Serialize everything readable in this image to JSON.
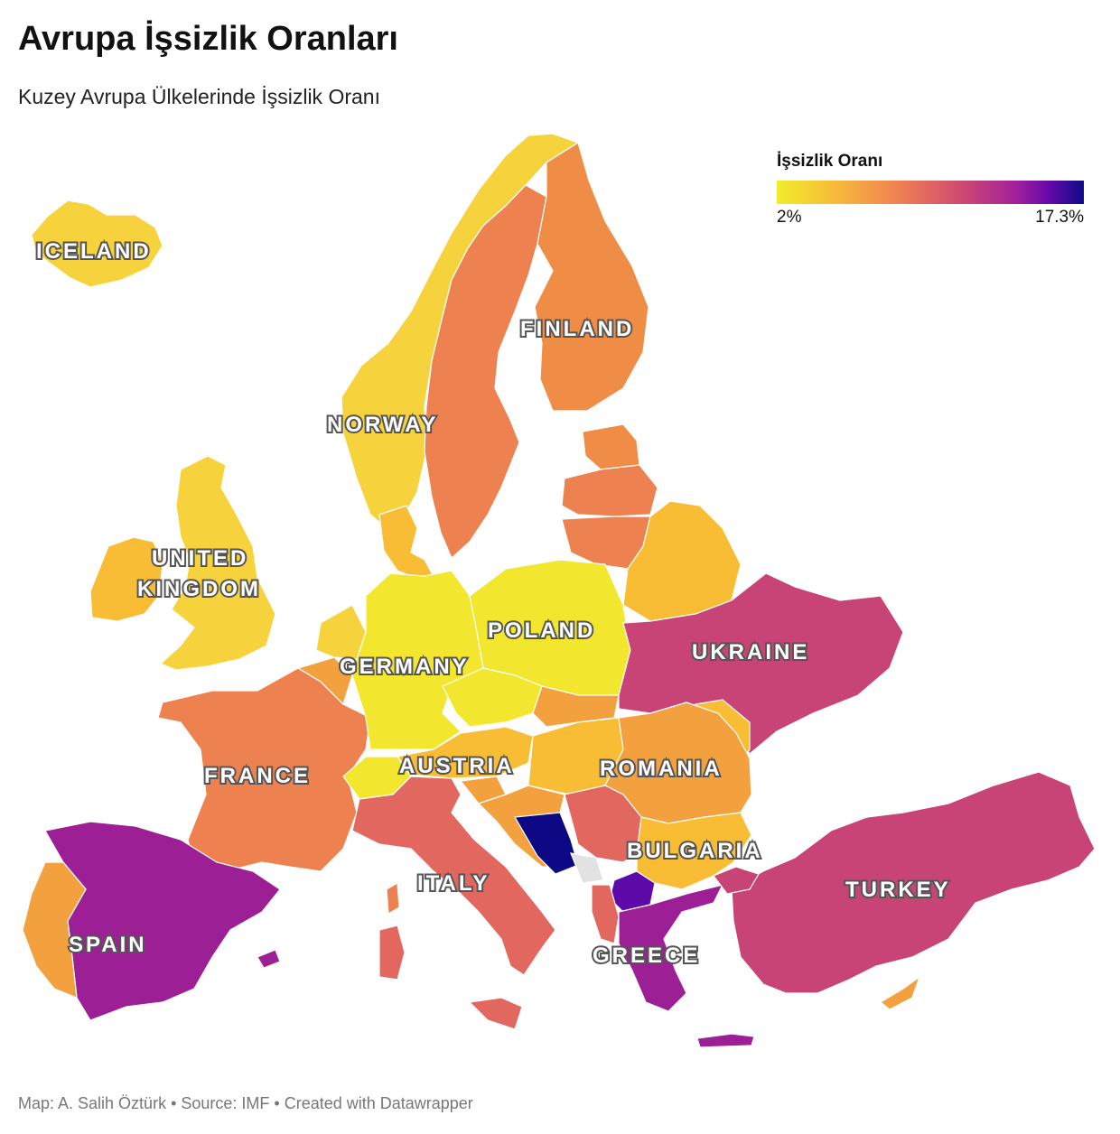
{
  "title": "Avrupa İşsizlik Oranları",
  "subtitle": "Kuzey Avrupa Ülkelerinde İşsizlik Oranı",
  "legend": {
    "title": "İşsizlik Oranı",
    "min_label": "2%",
    "max_label": "17.3%",
    "min_value": 2,
    "max_value": 17.3
  },
  "labels": {
    "iceland": "ICELAND",
    "finland": "FINLAND",
    "norway": "NORWAY",
    "uk_line1": "UNITED",
    "uk_line2": "KINGDOM",
    "poland": "POLAND",
    "ukraine": "UKRAINE",
    "germany": "GERMANY",
    "austria": "AUSTRIA",
    "romania": "ROMANIA",
    "france": "FRANCE",
    "bulgaria": "BULGARIA",
    "italy": "ITALY",
    "turkey": "TURKEY",
    "spain": "SPAIN",
    "greece": "GREECE"
  },
  "colors": {
    "yellow": "#f2e72e",
    "light_yellow": "#f6d33c",
    "gold": "#f8bd35",
    "orange": "#f3a03f",
    "dark_orange": "#ef8d46",
    "coral": "#ee8150",
    "salmon": "#e2675e",
    "magenta": "#c84376",
    "purple": "#9d1f96",
    "violet": "#5d0aa8",
    "navy": "#0d0985",
    "gray": "#e2e2e2"
  },
  "footer": "Map: A. Salih Öztürk • Source: IMF • Created with Datawrapper"
}
